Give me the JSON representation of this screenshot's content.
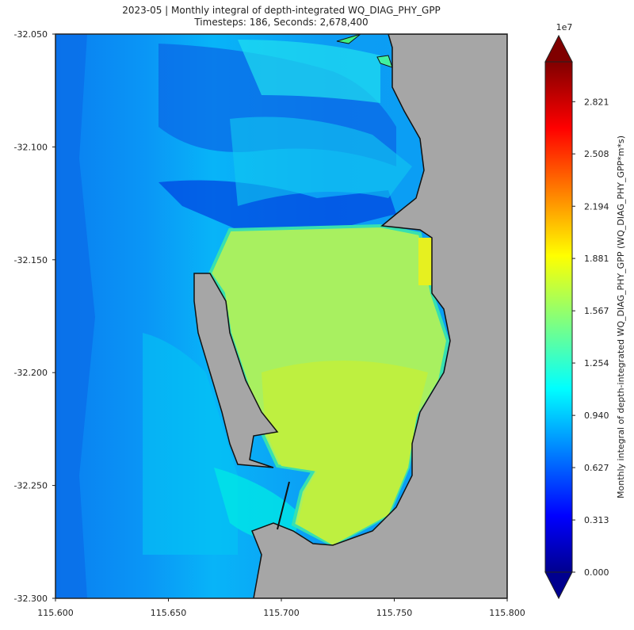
{
  "chart_data": {
    "type": "contourf",
    "title": "2023-05 | Monthly integral of depth-integrated WQ_DIAG_PHY_GPP",
    "subtitle": "Timesteps: 186, Seconds: 2,678,400",
    "xlim": [
      115.6,
      115.8
    ],
    "ylim": [
      -32.3,
      -32.05
    ],
    "xticks": [
      {
        "value": 115.6,
        "label": "115.600"
      },
      {
        "value": 115.65,
        "label": "115.650"
      },
      {
        "value": 115.7,
        "label": "115.700"
      },
      {
        "value": 115.75,
        "label": "115.750"
      },
      {
        "value": 115.8,
        "label": "115.800"
      }
    ],
    "yticks": [
      {
        "value": -32.05,
        "label": "-32.050"
      },
      {
        "value": -32.1,
        "label": "-32.100"
      },
      {
        "value": -32.15,
        "label": "-32.150"
      },
      {
        "value": -32.2,
        "label": "-32.200"
      },
      {
        "value": -32.25,
        "label": "-32.250"
      },
      {
        "value": -32.3,
        "label": "-32.300"
      }
    ],
    "colorbar": {
      "label": "Monthly integral of depth-integrated WQ_DIAG_PHY_GPP (WQ_DIAG_PHY_GPP*m*s)",
      "offset_text": "1e7",
      "colormap": "jet",
      "clim": [
        0,
        3.06
      ],
      "ticks": [
        {
          "value": 0,
          "label": "0.000"
        },
        0.313,
        0.627,
        {
          "value": 0.94,
          "label": "0.940"
        },
        1.254,
        1.567,
        1.881,
        2.194,
        2.508,
        2.821
      ]
    }
  }
}
